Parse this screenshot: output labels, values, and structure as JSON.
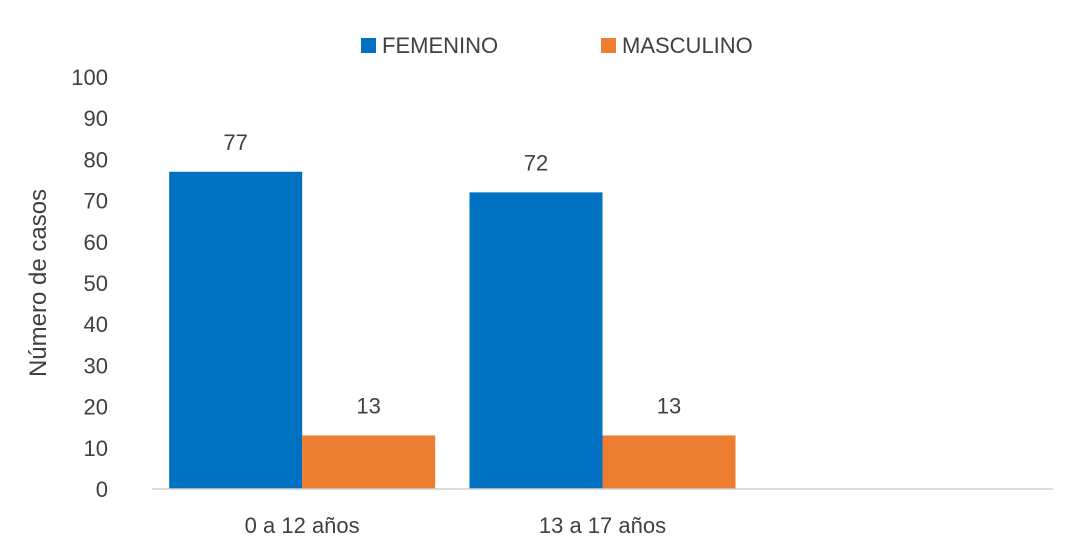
{
  "chart_data": {
    "type": "bar",
    "categories": [
      "0 a 12 años",
      "13 a 17 años",
      ""
    ],
    "series": [
      {
        "name": "FEMENINO",
        "values": [
          77,
          72,
          null
        ],
        "color": "#0070C0"
      },
      {
        "name": "MASCULINO",
        "values": [
          13,
          13,
          null
        ],
        "color": "#ED7D31"
      }
    ],
    "ylabel": "Número de casos",
    "xlabel": "",
    "title": "",
    "ylim": [
      0,
      100
    ],
    "yticks": [
      0,
      10,
      20,
      30,
      40,
      50,
      60,
      70,
      80,
      90,
      100
    ],
    "legend_position": "top",
    "grid": false,
    "data_labels": true
  }
}
